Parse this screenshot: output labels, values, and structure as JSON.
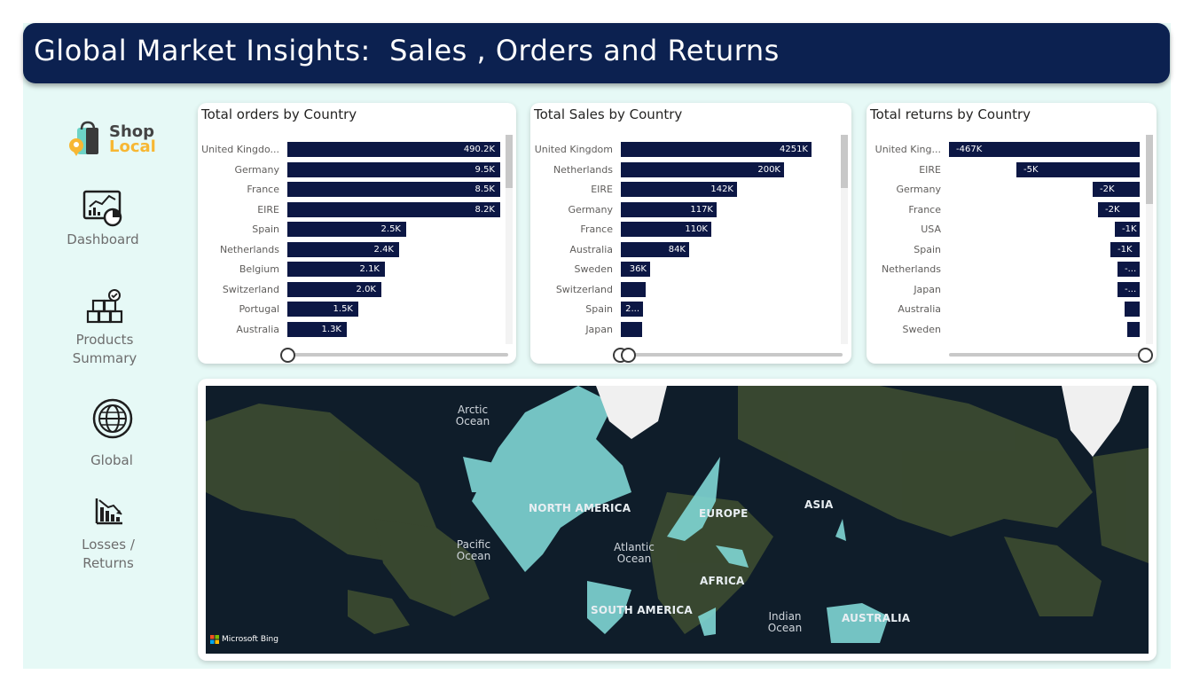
{
  "header": {
    "title": "Global Market Insights:  Sales , Orders and Returns"
  },
  "brand": {
    "line1": "Shop",
    "line2": "Local",
    "color1": "#444444",
    "color2": "#f7b733"
  },
  "nav": [
    {
      "label": "Dashboard",
      "icon": "dashboard-icon"
    },
    {
      "label": "Products\nSummary",
      "icon": "products-icon"
    },
    {
      "label": "Global",
      "icon": "globe-icon"
    },
    {
      "label": "Losses /\nReturns",
      "icon": "losses-icon"
    }
  ],
  "orders": {
    "title": "Total orders by Country",
    "rows": [
      {
        "country": "United Kingdo...",
        "value": 490.2,
        "label": "490.2K"
      },
      {
        "country": "Germany",
        "value": 9.5,
        "label": "9.5K"
      },
      {
        "country": "France",
        "value": 8.5,
        "label": "8.5K"
      },
      {
        "country": "EIRE",
        "value": 8.2,
        "label": "8.2K"
      },
      {
        "country": "Spain",
        "value": 2.5,
        "label": "2.5K"
      },
      {
        "country": "Netherlands",
        "value": 2.4,
        "label": "2.4K"
      },
      {
        "country": "Belgium",
        "value": 2.1,
        "label": "2.1K"
      },
      {
        "country": "Switzerland",
        "value": 2.0,
        "label": "2.0K"
      },
      {
        "country": "Portugal",
        "value": 1.5,
        "label": "1.5K"
      },
      {
        "country": "Australia",
        "value": 1.3,
        "label": "1.3K"
      }
    ]
  },
  "sales": {
    "title": "Total Sales by Country",
    "rows": [
      {
        "country": "United Kingdom",
        "value": 4251,
        "label": "4251K"
      },
      {
        "country": "Netherlands",
        "value": 200,
        "label": "200K"
      },
      {
        "country": "EIRE",
        "value": 142,
        "label": "142K"
      },
      {
        "country": "Germany",
        "value": 117,
        "label": "117K"
      },
      {
        "country": "France",
        "value": 110,
        "label": "110K"
      },
      {
        "country": "Australia",
        "value": 84,
        "label": "84K"
      },
      {
        "country": "Sweden",
        "value": 36,
        "label": "36K"
      },
      {
        "country": "Switzerland",
        "value": 28,
        "label": ""
      },
      {
        "country": "Spain",
        "value": 25,
        "label": "2..."
      },
      {
        "country": "Japan",
        "value": 24,
        "label": ""
      }
    ]
  },
  "returns": {
    "title": "Total returns by Country",
    "rows": [
      {
        "country": "United King...",
        "value": -467,
        "label": "-467K"
      },
      {
        "country": "EIRE",
        "value": -5,
        "label": "-5K"
      },
      {
        "country": "Germany",
        "value": -2,
        "label": "-2K"
      },
      {
        "country": "France",
        "value": -2,
        "label": "-2K"
      },
      {
        "country": "USA",
        "value": -1,
        "label": "-1K"
      },
      {
        "country": "Spain",
        "value": -1,
        "label": "-1K"
      },
      {
        "country": "Netherlands",
        "value": -0.9,
        "label": "-..."
      },
      {
        "country": "Japan",
        "value": -0.9,
        "label": "-..."
      },
      {
        "country": "Australia",
        "value": -0.6,
        "label": ""
      },
      {
        "country": "Sweden",
        "value": -0.5,
        "label": ""
      }
    ]
  },
  "map": {
    "labels": {
      "arctic": "Arctic\nOcean",
      "pacific": "Pacific\nOcean",
      "atlantic": "Atlantic\nOcean",
      "indian": "Indian\nOcean",
      "north_america": "NORTH AMERICA",
      "europe": "EUROPE",
      "asia": "ASIA",
      "africa": "AFRICA",
      "south_america": "SOUTH AMERICA",
      "australia": "AUSTRALIA"
    },
    "attribution": "Microsoft Bing",
    "highlight_color": "#7fd6d4"
  }
}
